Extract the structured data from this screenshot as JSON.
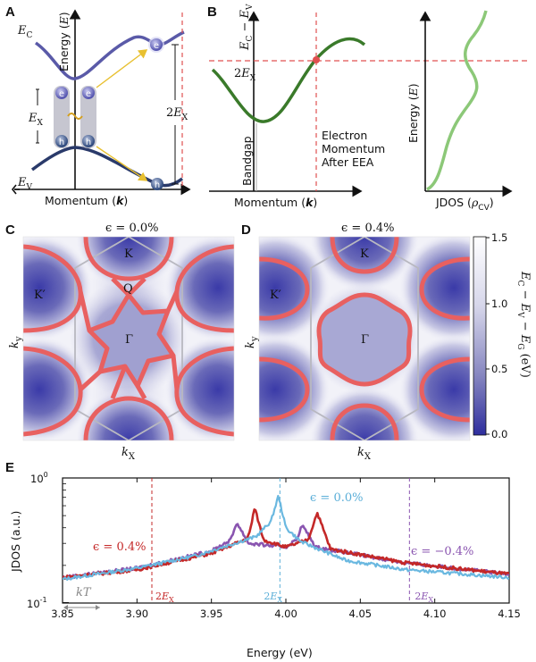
{
  "panels": {
    "a": "A",
    "b": "B",
    "c": "C",
    "d": "D",
    "e": "E"
  },
  "panel_a": {
    "ec": "E",
    "ec_sub": "C",
    "ev": "E",
    "ev_sub": "V",
    "energy": "Energy (",
    "energy_e": "E",
    "energy_close": ")",
    "ex": "E",
    "ex_sub": "X",
    "two_ex": "2",
    "two_ex_e": "E",
    "two_ex_sub": "X",
    "momentum": "Momentum (",
    "momentum_k": "k",
    "momentum_close": ")",
    "electron": "e",
    "hole": "h",
    "colors": {
      "band": "#4a4a9c",
      "valence": "#2a3a6a",
      "accent_red": "#e05050",
      "arrow": "#e8c030"
    }
  },
  "panel_b": {
    "yaxis": "E",
    "yaxis_c": "C",
    "yaxis_minus": " − E",
    "yaxis_v": "V",
    "two_ex": "2",
    "two_ex_e": "E",
    "two_ex_sub": "X",
    "bandgap": "Bandgap",
    "eea": [
      "Electron",
      "Momentum",
      "After EEA"
    ],
    "momentum": "Momentum (",
    "momentum_k": "k",
    "momentum_close": ")",
    "energy": "Energy (",
    "energy_e": "E",
    "energy_close": ")",
    "jdos": "JDOS (",
    "jdos_rho": "ρ",
    "jdos_sub": "CV",
    "jdos_close": ")",
    "colors": {
      "curve": "#3a7a2a",
      "jdos": "#8cc878"
    }
  },
  "panel_c": {
    "title": "ϵ = 0.0%",
    "points": {
      "k": "K",
      "kp": "K′",
      "q": "Q",
      "gamma": "Γ"
    },
    "xlabel": "k",
    "xsub": "X",
    "ylabel": "k",
    "ysub": "y"
  },
  "panel_d": {
    "title": "ϵ = 0.4%",
    "points": {
      "k": "K",
      "kp": "K′",
      "gamma": "Γ"
    },
    "xlabel": "k",
    "xsub": "X",
    "ylabel": "k",
    "ysub": "y"
  },
  "colorbar": {
    "ticks": [
      "1.5",
      "1.0",
      "0.5",
      "0.0"
    ],
    "label": "E_C − E_V − E_G (eV)",
    "label_ec": "E",
    "label_ec_sub": "C",
    "label_m1": " − ",
    "label_ev": "E",
    "label_ev_sub": "V",
    "label_m2": " − ",
    "label_eg": "E",
    "label_eg_sub": "G",
    "label_unit": " (eV)",
    "colors": {
      "low": "#3a3aa8",
      "high": "#ffffff"
    }
  },
  "chart_data": {
    "type": "line",
    "title": "",
    "xlabel": "Energy (eV)",
    "ylabel": "JDOS (a.u.)",
    "yscale": "log",
    "xlim": [
      3.85,
      4.15
    ],
    "ylim": [
      0.1,
      1.0
    ],
    "xticks": [
      "3.85",
      "3.90",
      "3.95",
      "4.00",
      "4.05",
      "4.10",
      "4.15"
    ],
    "yticks": [
      {
        "base": "10",
        "exp": "0"
      },
      {
        "base": "10",
        "exp": "-1"
      }
    ],
    "series": [
      {
        "name": "ϵ = 0.0%",
        "color": "#6ab8e0",
        "peaks": [
          3.995
        ],
        "x": [
          3.85,
          3.9,
          3.94,
          3.98,
          3.99,
          3.995,
          4.0,
          4.01,
          4.04,
          4.08,
          4.15
        ],
        "y": [
          0.155,
          0.19,
          0.24,
          0.34,
          0.45,
          0.72,
          0.4,
          0.31,
          0.22,
          0.185,
          0.16
        ]
      },
      {
        "name": "ϵ = 0.4%",
        "color": "#c42828",
        "peaks": [
          3.979,
          4.021
        ],
        "x": [
          3.85,
          3.9,
          3.95,
          3.975,
          3.979,
          3.985,
          4.0,
          4.015,
          4.021,
          4.03,
          4.08,
          4.15
        ],
        "y": [
          0.16,
          0.185,
          0.25,
          0.33,
          0.58,
          0.32,
          0.28,
          0.32,
          0.53,
          0.27,
          0.21,
          0.17
        ]
      },
      {
        "name": "ϵ = −0.4%",
        "color": "#8a55b0",
        "peaks": [
          3.967,
          4.011
        ],
        "x": [
          3.85,
          3.9,
          3.95,
          3.963,
          3.967,
          3.975,
          4.0,
          4.007,
          4.011,
          4.02,
          4.08,
          4.15
        ],
        "y": [
          0.16,
          0.19,
          0.26,
          0.32,
          0.44,
          0.3,
          0.28,
          0.32,
          0.42,
          0.28,
          0.21,
          0.17
        ]
      }
    ],
    "annotations": [
      {
        "text": "ϵ = 0.4%",
        "color": "#c42828"
      },
      {
        "text": "ϵ = 0.0%",
        "color": "#5aaed8"
      },
      {
        "text": "ϵ = −0.4%",
        "color": "#8a55b0"
      },
      {
        "text": "kT",
        "color": "#888888"
      }
    ],
    "vlines": [
      {
        "x": 3.91,
        "label": "2",
        "label_e": "E",
        "label_sub": "X",
        "color": "#c42828"
      },
      {
        "x": 3.996,
        "label": "2",
        "label_e": "E",
        "label_sub": "X",
        "color": "#5aaed8"
      },
      {
        "x": 4.083,
        "label": "2",
        "label_e": "E",
        "label_sub": "X",
        "color": "#8a55b0"
      }
    ],
    "kT_width": 0.0257
  }
}
